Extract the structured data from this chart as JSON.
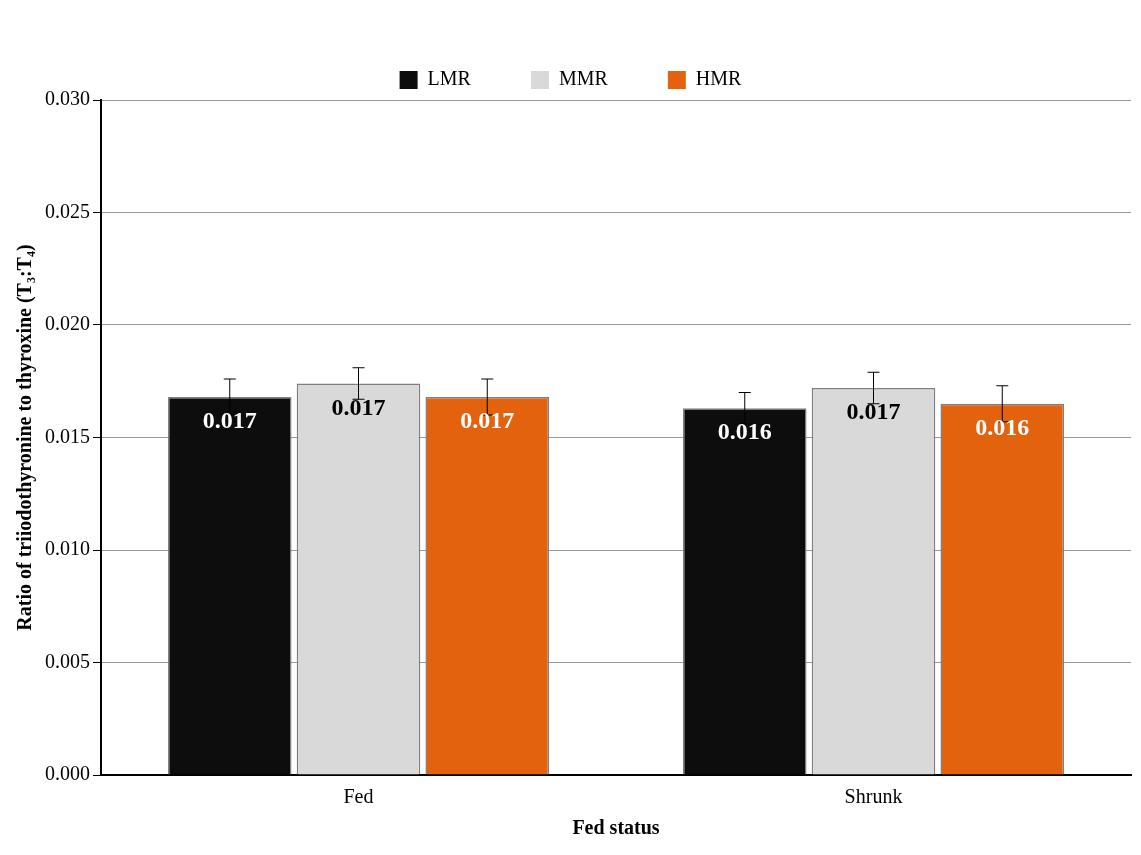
{
  "chart_data": {
    "type": "bar",
    "xlabel": "Fed status",
    "ylabel": "Ratio of triiodothyronine to thyroxine (T₃:T₄)",
    "categories": [
      "Fed",
      "Shrunk"
    ],
    "series": [
      {
        "name": "LMR",
        "color": "#0d0d0d",
        "values": [
          0.0168,
          0.0163
        ],
        "errors": [
          0.0008,
          0.0007
        ],
        "value_labels": [
          "0.017",
          "0.016"
        ]
      },
      {
        "name": "MMR",
        "color": "#d9d9d9",
        "values": [
          0.0174,
          0.0172
        ],
        "errors": [
          0.0007,
          0.0007
        ],
        "value_labels": [
          "0.017",
          "0.017"
        ]
      },
      {
        "name": "HMR",
        "color": "#e2620e",
        "values": [
          0.0168,
          0.0165
        ],
        "errors": [
          0.0008,
          0.0008
        ],
        "value_labels": [
          "0.017",
          "0.016"
        ]
      }
    ],
    "ylim": [
      0,
      0.03
    ],
    "yticks": [
      {
        "value": 0,
        "label": "0.000"
      },
      {
        "value": 0.005,
        "label": "0.005"
      },
      {
        "value": 0.01,
        "label": "0.010"
      },
      {
        "value": 0.015,
        "label": "0.015"
      },
      {
        "value": 0.02,
        "label": "0.020"
      },
      {
        "value": 0.025,
        "label": "0.025"
      },
      {
        "value": 0.03,
        "label": "0.030"
      }
    ],
    "grid": "y",
    "legend": "top"
  }
}
